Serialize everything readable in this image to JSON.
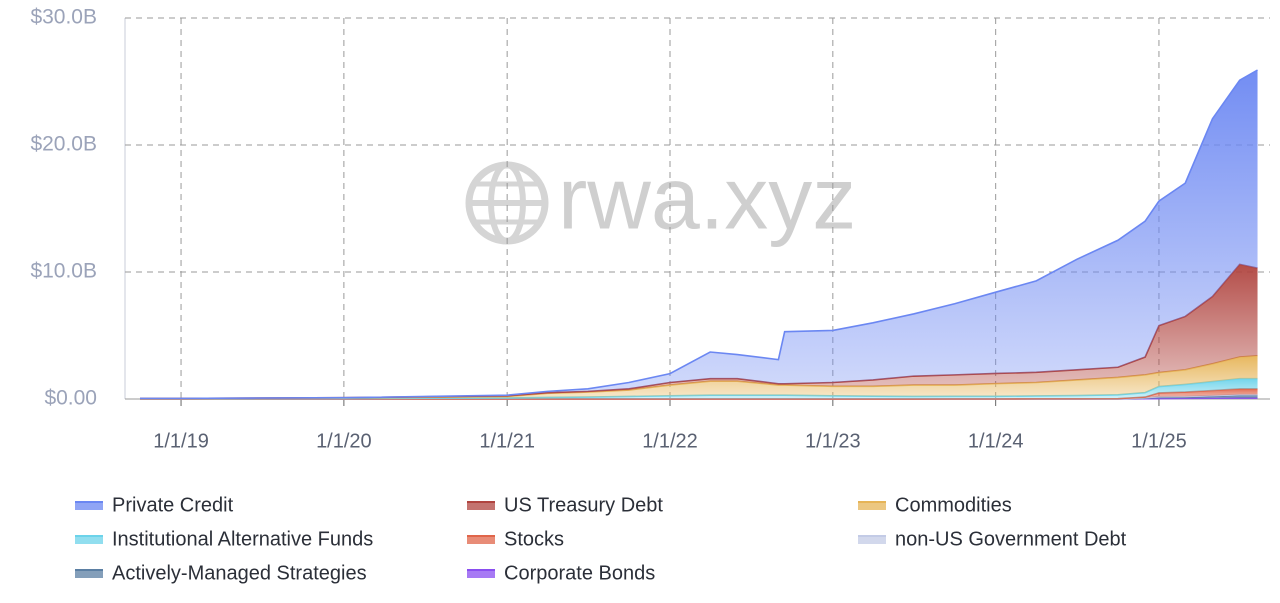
{
  "chart_data": {
    "type": "stacked_area",
    "watermark": "rwa.xyz",
    "x": [
      "10/1/18",
      "1/1/19",
      "1/1/20",
      "1/1/21",
      "4/1/21",
      "7/1/21",
      "10/1/21",
      "1/1/22",
      "4/1/22",
      "6/1/22",
      "9/1/22",
      "9/15/22",
      "1/1/23",
      "4/1/23",
      "7/1/23",
      "10/1/23",
      "1/1/24",
      "4/1/24",
      "7/1/24",
      "10/1/24",
      "12/1/24",
      "1/1/25",
      "3/1/25",
      "5/1/25",
      "7/1/25",
      "8/10/25"
    ],
    "xlim": [
      "10/1/18",
      "8/20/25"
    ],
    "xticks": [
      "1/1/19",
      "1/1/20",
      "1/1/21",
      "1/1/22",
      "1/1/23",
      "1/1/24",
      "1/1/25"
    ],
    "ylim": [
      0,
      30
    ],
    "yticks": [
      {
        "value": 0,
        "label": "$0.00"
      },
      {
        "value": 10,
        "label": "$10.0B"
      },
      {
        "value": 20,
        "label": "$20.0B"
      },
      {
        "value": 30,
        "label": "$30.0B"
      }
    ],
    "grid": true,
    "series": [
      {
        "name": "Private Credit",
        "color": "#6b87f2",
        "values": [
          0,
          0,
          0,
          0.05,
          0.1,
          0.2,
          0.5,
          0.7,
          2.1,
          1.9,
          1.9,
          4.1,
          4.1,
          4.5,
          4.9,
          5.6,
          6.4,
          7.2,
          8.7,
          10.0,
          10.7,
          9.8,
          10.5,
          14.0,
          14.5,
          15.6
        ]
      },
      {
        "name": "US Treasury Debt",
        "color": "#b0443f",
        "values": [
          0.01,
          0.01,
          0.02,
          0.05,
          0.05,
          0.05,
          0.1,
          0.2,
          0.2,
          0.2,
          0.1,
          0.1,
          0.3,
          0.5,
          0.7,
          0.8,
          0.8,
          0.8,
          0.8,
          0.8,
          1.4,
          3.7,
          4.2,
          5.3,
          7.3,
          6.9
        ]
      },
      {
        "name": "Commodities",
        "color": "#e6b457",
        "values": [
          0.02,
          0.02,
          0.04,
          0.12,
          0.33,
          0.4,
          0.5,
          0.85,
          1.1,
          1.1,
          0.8,
          0.8,
          0.75,
          0.78,
          0.9,
          0.89,
          1.0,
          1.06,
          1.23,
          1.37,
          1.4,
          1.1,
          1.15,
          1.4,
          1.7,
          1.8
        ]
      },
      {
        "name": "Institutional Alternative Funds",
        "color": "#6cd3ea",
        "values": [
          0.02,
          0.02,
          0.04,
          0.08,
          0.12,
          0.15,
          0.2,
          0.25,
          0.3,
          0.3,
          0.3,
          0.3,
          0.25,
          0.22,
          0.2,
          0.2,
          0.2,
          0.22,
          0.25,
          0.3,
          0.35,
          0.5,
          0.6,
          0.7,
          0.8,
          0.8
        ]
      },
      {
        "name": "Stocks",
        "color": "#e0654a",
        "values": [
          0,
          0,
          0,
          0,
          0,
          0,
          0,
          0,
          0,
          0,
          0,
          0,
          0,
          0,
          0,
          0.01,
          0.01,
          0.02,
          0.02,
          0.03,
          0.05,
          0.3,
          0.35,
          0.4,
          0.45,
          0.45
        ]
      },
      {
        "name": "non-US Government Debt",
        "color": "#c3cbe6",
        "values": [
          0,
          0,
          0,
          0,
          0,
          0,
          0,
          0,
          0,
          0,
          0,
          0,
          0,
          0,
          0,
          0,
          0,
          0,
          0,
          0,
          0.03,
          0.05,
          0.05,
          0.06,
          0.07,
          0.07
        ]
      },
      {
        "name": "Actively-Managed Strategies",
        "color": "#5b7fa3",
        "values": [
          0,
          0,
          0,
          0,
          0,
          0,
          0,
          0,
          0,
          0,
          0,
          0,
          0,
          0,
          0,
          0,
          0,
          0,
          0,
          0,
          0.05,
          0.1,
          0.1,
          0.15,
          0.2,
          0.2
        ]
      },
      {
        "name": "Corporate Bonds",
        "color": "#8a4ef0",
        "values": [
          0,
          0,
          0,
          0,
          0,
          0,
          0,
          0,
          0,
          0,
          0,
          0,
          0,
          0,
          0,
          0,
          0,
          0,
          0,
          0,
          0.02,
          0.03,
          0.05,
          0.06,
          0.08,
          0.08
        ]
      }
    ]
  }
}
